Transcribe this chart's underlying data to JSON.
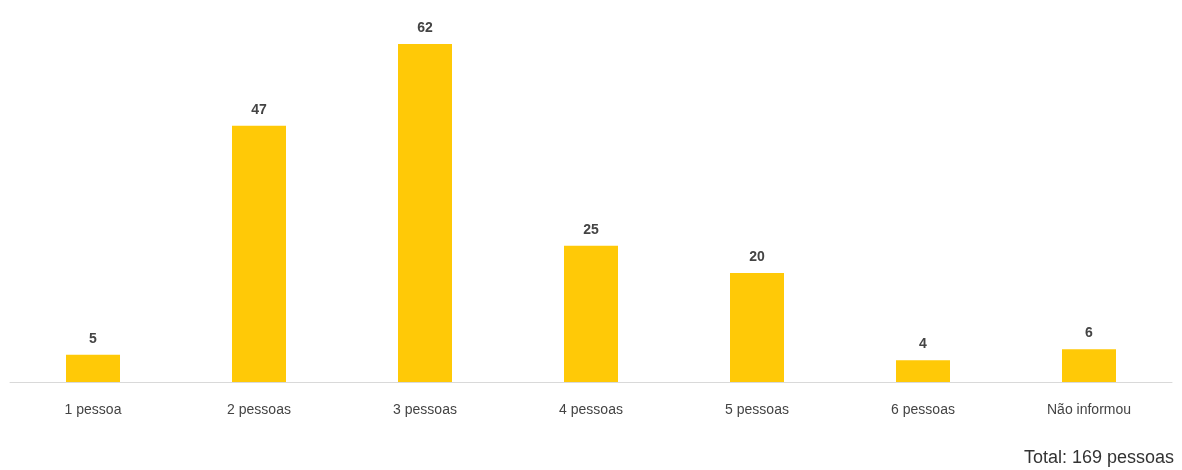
{
  "chart_data": {
    "type": "bar",
    "categories": [
      "1 pessoa",
      "2 pessoas",
      "3 pessoas",
      "4 pessoas",
      "5 pessoas",
      "6 pessoas",
      "Não informou"
    ],
    "values": [
      5,
      47,
      62,
      25,
      20,
      4,
      6
    ],
    "color": "#ffc907",
    "data_labels": true,
    "ylim": [
      0,
      62
    ],
    "tick_labels": "x",
    "annotations": [
      "Total: 169 pessoas"
    ]
  }
}
